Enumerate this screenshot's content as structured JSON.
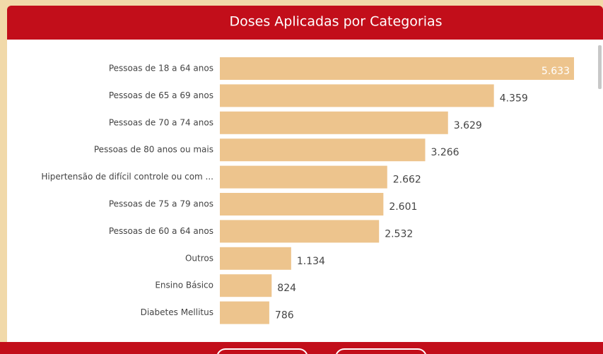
{
  "chart_data": {
    "type": "bar",
    "orientation": "horizontal",
    "title": "Doses Aplicadas por Categorias",
    "categories": [
      "Pessoas de 18 a 64 anos",
      "Pessoas de 65 a 69 anos",
      "Pessoas de 70 a 74 anos",
      "Pessoas de 80 anos ou mais",
      "Hipertensão de difícil controle ou com ...",
      "Pessoas de 75 a 79 anos",
      "Pessoas de 60 a 64 anos",
      "Outros",
      "Ensino Básico",
      "Diabetes Mellitus"
    ],
    "values": [
      5633,
      4359,
      3629,
      3266,
      2662,
      2601,
      2532,
      1134,
      824,
      786
    ],
    "value_labels": [
      "5.633",
      "4.359",
      "3.629",
      "3.266",
      "2.662",
      "2.601",
      "2.532",
      "1.134",
      "824",
      "786"
    ],
    "color": "#edc48d"
  }
}
